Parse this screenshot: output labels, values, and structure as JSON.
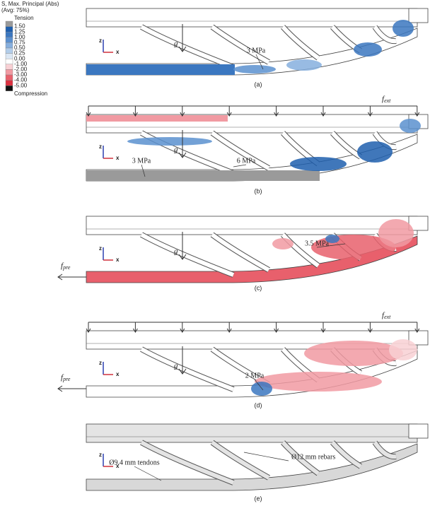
{
  "legend": {
    "title": "S, Max. Principal (Abs)",
    "subtitle": "(Avg: 75%)",
    "top": "Tension",
    "bottom": "Compression",
    "levels": [
      "1.50",
      "1.25",
      "1.00",
      "0.75",
      "0.50",
      "0.25",
      "0.00",
      "-1.00",
      "-2.00",
      "-3.00",
      "-4.00",
      "-5.00"
    ],
    "colors": [
      "#9a9a9a",
      "#1f5fae",
      "#3b77c0",
      "#5b90cf",
      "#86afde",
      "#b2cdea",
      "#dbe7f4",
      "#ffffff",
      "#f8d0d4",
      "#f19aa2",
      "#e8606c",
      "#db3140",
      "#111111"
    ]
  },
  "axes": {
    "z": "z",
    "x": "x"
  },
  "gravity": "g",
  "f_ext": {
    "base": "f",
    "sub": "ext"
  },
  "f_pre": {
    "base": "f",
    "sub": "pre"
  },
  "panels": [
    {
      "label": "(a)",
      "annotations": [
        "3 MPa"
      ]
    },
    {
      "label": "(b)",
      "annotations": [
        "3 MPa",
        "6 MPa"
      ]
    },
    {
      "label": "(c)",
      "annotations": [
        "3.5 MPa"
      ]
    },
    {
      "label": "(d)",
      "annotations": [
        "2 MPa"
      ]
    },
    {
      "label": "(e)",
      "annotations": [
        "Ø9.4 mm tendons",
        "Ø12 mm rebars"
      ]
    }
  ]
}
